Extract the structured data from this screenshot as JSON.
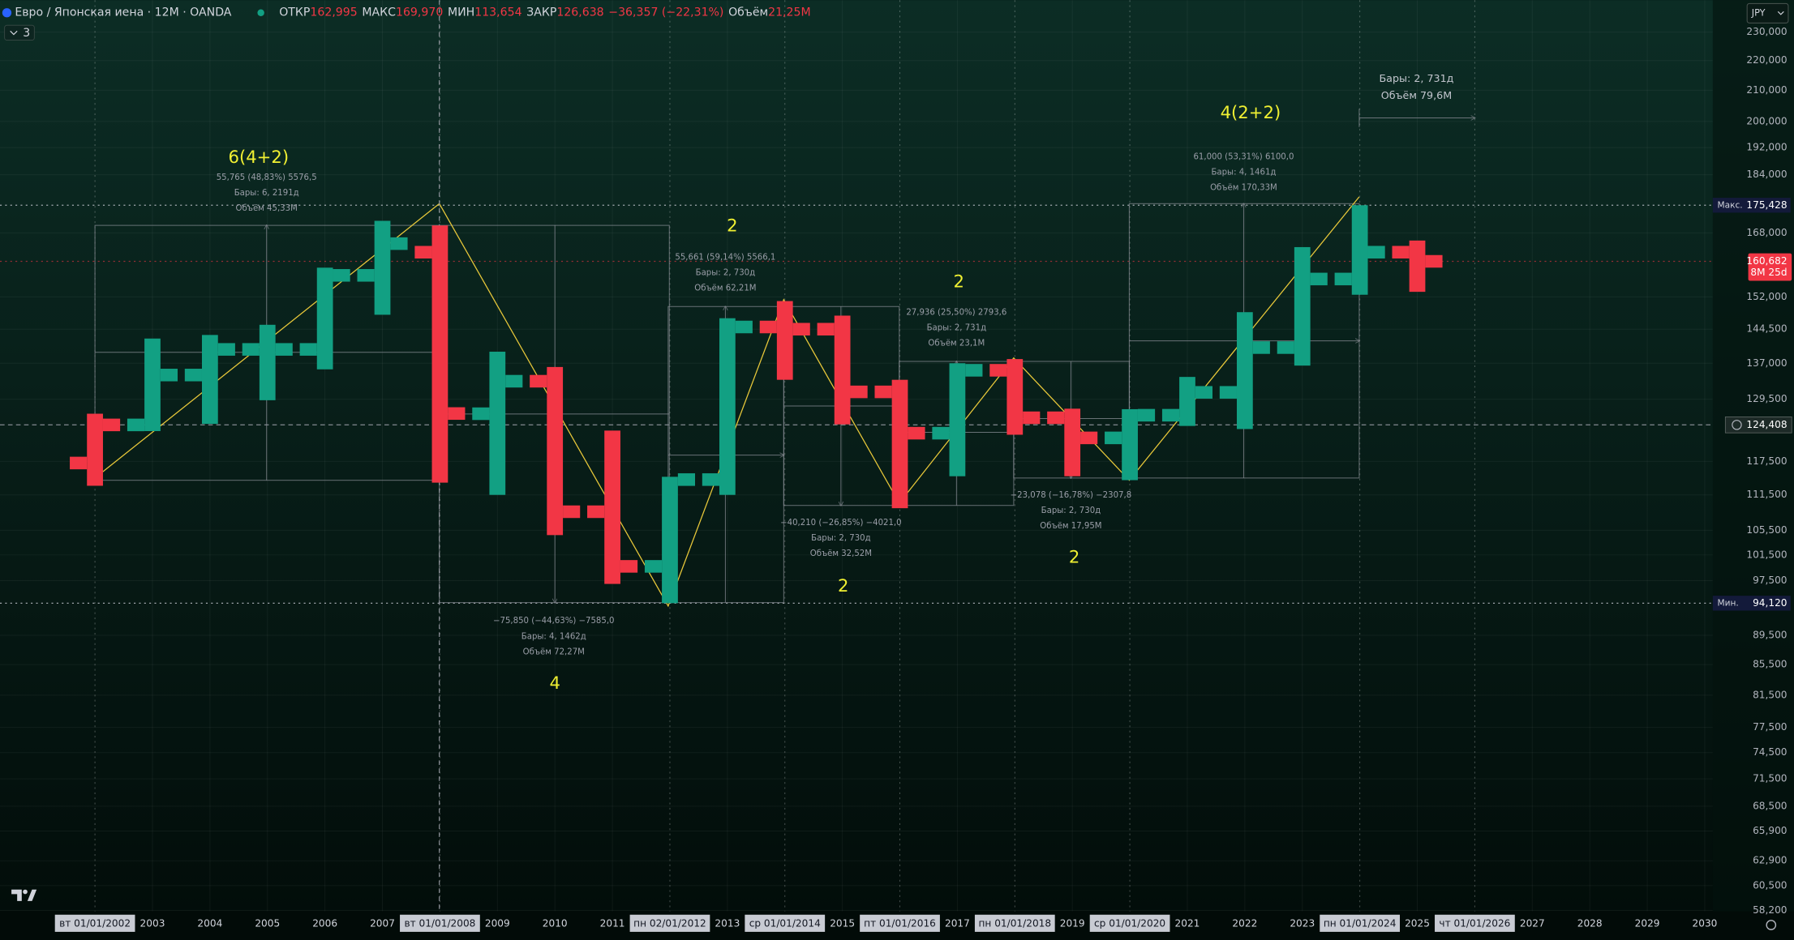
{
  "chart_data": {
    "type": "ohlc",
    "title": "Евро / Японская иена · 12M · OANDA",
    "header": {
      "fields": [
        {
          "name": "ОТКР",
          "text": "162,995"
        },
        {
          "name": "МАКС",
          "text": "169,970"
        },
        {
          "name": "МИН",
          "text": "113,654"
        },
        {
          "name": "ЗАКР",
          "text": "126,638"
        }
      ],
      "change": "−36,357 (−22,31%)",
      "volume_name": "Объём",
      "volume": "21,25M",
      "indicator_count": "3",
      "currency": "JPY"
    },
    "categories": [
      "вт 01/01/2002",
      "2003",
      "2004",
      "2005",
      "2006",
      "2007",
      "вт 01/01/2008",
      "2009",
      "2010",
      "2011",
      "пн 02/01/2012",
      "2013",
      "ср 01/01/2014",
      "2015",
      "пт 01/01/2016",
      "2017",
      "пн 01/01/2018",
      "2019",
      "ср 01/01/2020",
      "2021",
      "2022",
      "2023",
      "пн 01/01/2024",
      "2025",
      "чт 01/01/2026",
      "2027",
      "2028",
      "2029",
      "2030"
    ],
    "open": [
      117.2,
      124.4,
      134.5,
      140.0,
      140.0,
      157.2,
      162.995,
      126.6,
      133.2,
      108.6,
      99.7,
      114.2,
      145.0,
      144.5,
      131.0,
      122.8,
      135.5,
      125.8,
      121.9,
      126.3,
      130.9,
      140.4,
      156.3,
      163.0,
      null,
      null,
      null,
      null,
      null
    ],
    "high": [
      126.6,
      142.4,
      143.2,
      145.5,
      159.1,
      171.2,
      169.97,
      139.5,
      136.2,
      123.3,
      114.7,
      147.0,
      151.0,
      147.6,
      133.5,
      137.0,
      137.9,
      127.6,
      127.5,
      134.1,
      148.4,
      164.3,
      175.428,
      166.0,
      null,
      null,
      null,
      null,
      null
    ],
    "low": [
      113.1,
      123.2,
      124.6,
      129.3,
      135.7,
      147.8,
      113.654,
      111.5,
      104.7,
      97.0,
      94.12,
      111.5,
      133.5,
      124.5,
      109.2,
      114.8,
      122.5,
      114.8,
      114.1,
      124.2,
      123.6,
      136.5,
      152.5,
      153.2,
      null,
      null,
      null,
      null,
      null
    ],
    "close": [
      124.4,
      134.5,
      140.0,
      140.0,
      157.2,
      165.2,
      126.638,
      133.2,
      108.6,
      99.7,
      114.2,
      145.0,
      144.5,
      131.0,
      122.8,
      135.5,
      125.8,
      121.9,
      126.3,
      130.9,
      140.4,
      156.3,
      163.0,
      160.682,
      null,
      null,
      null,
      null,
      null
    ],
    "colors": [
      "#f23645",
      "#12a083",
      "#12a083",
      "#12a083",
      "#12a083",
      "#12a083",
      "#f23645",
      "#12a083",
      "#f23645",
      "#f23645",
      "#12a083",
      "#12a083",
      "#f23645",
      "#f23645",
      "#f23645",
      "#12a083",
      "#f23645",
      "#f23645",
      "#12a083",
      "#12a083",
      "#12a083",
      "#12a083",
      "#12a083",
      "#f23645",
      null,
      null,
      null,
      null,
      null
    ],
    "log_scale": true,
    "grid": true,
    "ylim": [
      58.12,
      241.8
    ],
    "yticks": [
      {
        "value": 230,
        "label": "230,000"
      },
      {
        "value": 220,
        "label": "220,000"
      },
      {
        "value": 210,
        "label": "210,000"
      },
      {
        "value": 200,
        "label": "200,000"
      },
      {
        "value": 192,
        "label": "192,000"
      },
      {
        "value": 184,
        "label": "184,000"
      },
      {
        "value": 168,
        "label": "168,000"
      },
      {
        "value": 152,
        "label": "152,000"
      },
      {
        "value": 144.5,
        "label": "144,500"
      },
      {
        "value": 137,
        "label": "137,000"
      },
      {
        "value": 129.5,
        "label": "129,500"
      },
      {
        "value": 117.5,
        "label": "117,500"
      },
      {
        "value": 111.5,
        "label": "111,500"
      },
      {
        "value": 105.5,
        "label": "105,500"
      },
      {
        "value": 101.5,
        "label": "101,500"
      },
      {
        "value": 97.5,
        "label": "97,500"
      },
      {
        "value": 89.5,
        "label": "89,500"
      },
      {
        "value": 85.5,
        "label": "85,500"
      },
      {
        "value": 81.5,
        "label": "81,500"
      },
      {
        "value": 77.5,
        "label": "77,500"
      },
      {
        "value": 74.5,
        "label": "74,500"
      },
      {
        "value": 71.5,
        "label": "71,500"
      },
      {
        "value": 68.5,
        "label": "68,500"
      },
      {
        "value": 65.9,
        "label": "65,900"
      },
      {
        "value": 62.9,
        "label": "62,900"
      },
      {
        "value": 60.5,
        "label": "60,500"
      },
      {
        "value": 58.2,
        "label": "58,200"
      }
    ],
    "markers": [
      {
        "name": "Макс.",
        "value": 175.428,
        "label": "175,428"
      },
      {
        "value": 160.682,
        "label": "160,682",
        "sub": "8M 25d"
      },
      {
        "value": 124.408,
        "label": "124,408"
      },
      {
        "name": "Мин.",
        "value": 94.12,
        "label": "94,120"
      }
    ],
    "measurements": [
      {
        "lines": [
          "55,765 (48,83%) 5576,5",
          "Бары: 6, 2191д",
          "Объём 45,33M"
        ],
        "wave": "6(4+2)"
      },
      {
        "lines": [
          "−75,850 (−44,63%) −7585,0",
          "Бары: 4, 1462д",
          "Объём 72,27M"
        ],
        "wave": "4"
      },
      {
        "lines": [
          "55,661 (59,14%) 5566,1",
          "Бары: 2, 730д",
          "Объём 62,21M"
        ],
        "wave": "2"
      },
      {
        "lines": [
          "−40,210 (−26,85%) −4021,0",
          "Бары: 2, 730д",
          "Объём 32,52M"
        ],
        "wave": "2"
      },
      {
        "lines": [
          "27,936 (25,50%) 2793,6",
          "Бары: 2, 731д",
          "Объём 23,1M"
        ],
        "wave": "2"
      },
      {
        "lines": [
          "−23,078 (−16,78%) −2307,8",
          "Бары: 2, 730д",
          "Объём 17,95M"
        ],
        "wave": "2"
      },
      {
        "lines": [
          "61,000 (53,31%) 6100,0",
          "Бары: 4, 1461д",
          "Объём 170,33M"
        ],
        "wave": "4(2+2)"
      },
      {
        "lines": [
          "Бары: 2, 731д",
          "Объём 79,6M"
        ]
      }
    ]
  }
}
